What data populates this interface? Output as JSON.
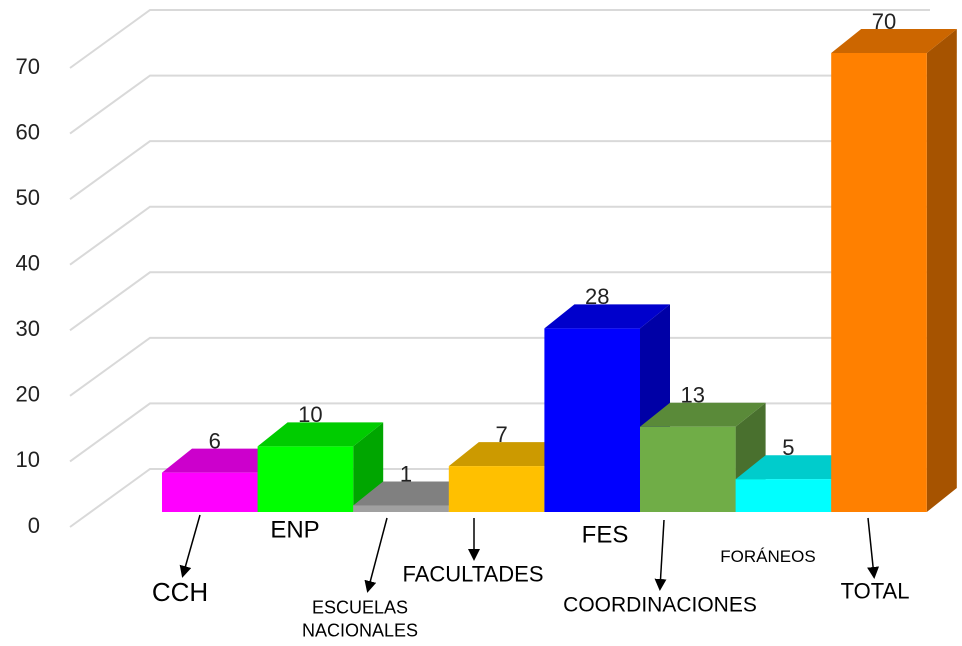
{
  "chart_data": {
    "type": "bar3d",
    "categories": [
      "CCH",
      "ENP",
      "ESCUELAS NACIONALES",
      "FACULTADES",
      "FES",
      "COORDINACIONES",
      "FORÁNEOS",
      "TOTAL"
    ],
    "values": [
      6,
      10,
      1,
      7,
      28,
      13,
      5,
      70
    ],
    "colors": [
      "#ff00ff",
      "#00ff00",
      "#a0a0a0",
      "#ffc000",
      "#0000ff",
      "#70ad47",
      "#00ffff",
      "#ff8000"
    ],
    "ylim": [
      0,
      70
    ],
    "yticks": [
      0,
      10,
      20,
      30,
      40,
      50,
      60,
      70
    ],
    "grid": true
  }
}
